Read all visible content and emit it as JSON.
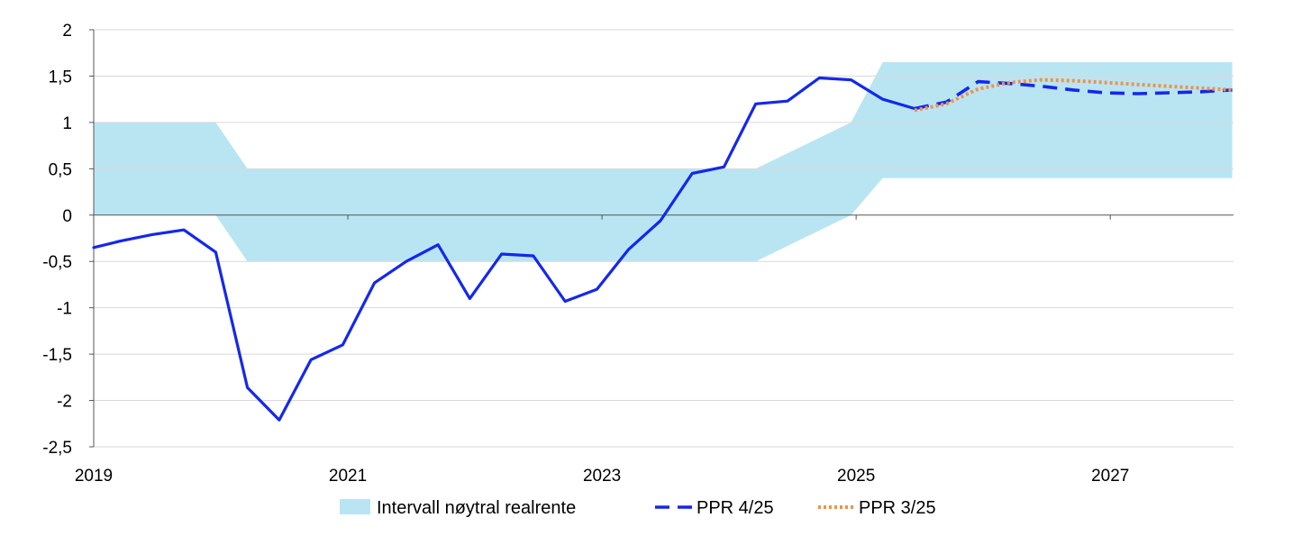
{
  "chart_data": {
    "type": "line",
    "title": "",
    "xlabel": "",
    "ylabel": "",
    "ylim": [
      -2.5,
      2
    ],
    "yticks": [
      2,
      1.5,
      1,
      0.5,
      0,
      -0.5,
      -1,
      -1.5,
      -2,
      -2.5
    ],
    "ytick_labels": [
      "2",
      "1,5",
      "1",
      "0,5",
      "0",
      "-0,5",
      "-1",
      "-1,5",
      "-2",
      "-2,5"
    ],
    "xlim": [
      2019.0,
      2027.97
    ],
    "xticks": [
      2019,
      2021,
      2023,
      2025,
      2027
    ],
    "xtick_labels": [
      "2019",
      "2021",
      "2023",
      "2025",
      "2027"
    ],
    "grid": "horizontal",
    "legend_position": "bottom",
    "colors": {
      "band": "#b9e5f3",
      "history": "#1428ea",
      "ppr4": "#1428ea",
      "ppr3": "#f0924a",
      "grid": "#d9d9d9",
      "axis": "#555555"
    },
    "band": {
      "name": "Intervall nøytral realrente",
      "x": [
        2019.0,
        2019.96,
        2020.21,
        2024.21,
        2024.96,
        2025.21,
        2027.96
      ],
      "lower": [
        0,
        0,
        -0.5,
        -0.5,
        0,
        0.4,
        0.4
      ],
      "upper": [
        1,
        1,
        0.5,
        0.5,
        1,
        1.65,
        1.65
      ]
    },
    "series": [
      {
        "name": "",
        "style": "solid",
        "x": [
          2019.0,
          2019.21,
          2019.46,
          2019.71,
          2019.96,
          2020.21,
          2020.46,
          2020.71,
          2020.96,
          2021.21,
          2021.46,
          2021.71,
          2021.96,
          2022.21,
          2022.46,
          2022.71,
          2022.96,
          2023.21,
          2023.46,
          2023.71,
          2023.96,
          2024.21,
          2024.46,
          2024.71,
          2024.96,
          2025.21,
          2025.46
        ],
        "values": [
          -0.35,
          -0.28,
          -0.21,
          -0.16,
          -0.4,
          -1.86,
          -2.21,
          -1.56,
          -1.4,
          -0.73,
          -0.5,
          -0.32,
          -0.9,
          -0.42,
          -0.44,
          -0.93,
          -0.8,
          -0.37,
          -0.06,
          0.45,
          0.52,
          1.2,
          1.23,
          1.48,
          1.46,
          1.25,
          1.15
        ]
      },
      {
        "name": "PPR 4/25",
        "style": "dashed",
        "x": [
          2025.46,
          2025.71,
          2025.96,
          2026.21,
          2026.46,
          2026.71,
          2026.96,
          2027.21,
          2027.46,
          2027.71,
          2027.96
        ],
        "values": [
          1.15,
          1.22,
          1.44,
          1.42,
          1.39,
          1.35,
          1.32,
          1.31,
          1.32,
          1.33,
          1.35
        ]
      },
      {
        "name": "PPR 3/25",
        "style": "dotted",
        "x": [
          2025.46,
          2025.71,
          2025.96,
          2026.21,
          2026.46,
          2026.71,
          2026.96,
          2027.21,
          2027.46,
          2027.71,
          2027.96
        ],
        "values": [
          1.13,
          1.2,
          1.36,
          1.43,
          1.46,
          1.45,
          1.43,
          1.41,
          1.39,
          1.37,
          1.35
        ]
      }
    ]
  }
}
